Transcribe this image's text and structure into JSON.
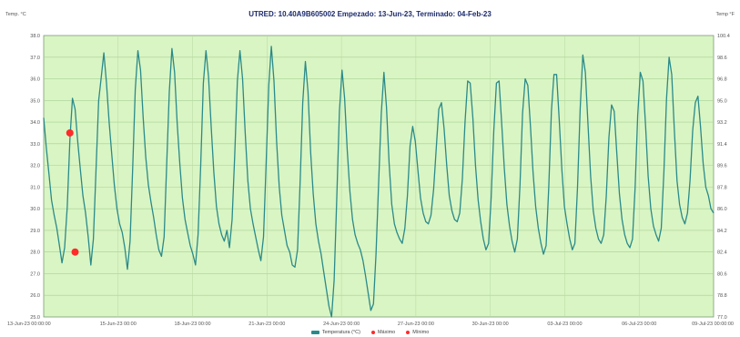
{
  "chart_data": {
    "type": "line",
    "title": "UTRED: 10.40A9B605002 Empezado: 13-Jun-23, Terminado: 04-Feb-23",
    "left_unit": "Temp. °C",
    "right_unit": "Temp °F",
    "y_ticks_left": [
      "38.0",
      "37.0",
      "36.0",
      "35.0",
      "34.0",
      "33.0",
      "32.0",
      "31.0",
      "30.0",
      "29.0",
      "28.0",
      "27.0",
      "26.0",
      "25.0"
    ],
    "y_ticks_right": [
      "100.4",
      "98.6",
      "96.8",
      "95.0",
      "93.2",
      "91.4",
      "89.6",
      "87.8",
      "86.0",
      "84.2",
      "82.4",
      "80.6",
      "78.8",
      "77.0"
    ],
    "ylim": [
      25,
      38
    ],
    "x_ticks": [
      "13-Jun-23 00:00:00",
      "15-Jun-23 00:00",
      "18-Jun-23 00:00",
      "21-Jun-23 00:00",
      "24-Jun-23 00:00",
      "27-Jun-23 00:00",
      "30-Jun-23 00:00",
      "03-Jul-23 00:00",
      "06-Jul-23 00:00",
      "09-Jul-23 00:00:00"
    ],
    "grid": true,
    "legend_position": "bottom",
    "plot_background": "#d9f5c3",
    "series": [
      {
        "name": "Temperatura (°C)",
        "color": "#2a8a8a",
        "values": [
          34.2,
          32.8,
          31.6,
          30.4,
          29.7,
          29.1,
          28.3,
          27.5,
          28.2,
          30.1,
          33.2,
          35.1,
          34.6,
          33.1,
          31.8,
          30.6,
          29.8,
          28.7,
          27.4,
          28.6,
          31.8,
          35.0,
          36.1,
          37.2,
          35.8,
          34.0,
          32.5,
          31.1,
          30.0,
          29.3,
          28.9,
          28.2,
          27.2,
          28.5,
          31.9,
          35.5,
          37.3,
          36.4,
          34.2,
          32.4,
          31.1,
          30.3,
          29.6,
          28.8,
          28.1,
          27.8,
          28.7,
          32.0,
          35.4,
          37.4,
          36.3,
          34.0,
          32.1,
          30.5,
          29.5,
          28.9,
          28.3,
          27.9,
          27.4,
          28.8,
          32.0,
          35.8,
          37.3,
          36.1,
          33.8,
          31.7,
          30.1,
          29.3,
          28.8,
          28.5,
          29.0,
          28.2,
          29.5,
          32.5,
          35.9,
          37.3,
          36.0,
          33.5,
          31.3,
          30.0,
          29.3,
          28.7,
          28.1,
          27.6,
          28.7,
          32.1,
          35.7,
          37.5,
          35.9,
          33.1,
          31.0,
          29.7,
          29.0,
          28.3,
          28.0,
          27.4,
          27.3,
          28.1,
          31.3,
          34.9,
          36.8,
          35.4,
          32.6,
          30.7,
          29.3,
          28.5,
          27.9,
          27.1,
          26.3,
          25.5,
          25.0,
          26.7,
          30.5,
          34.5,
          36.4,
          35.1,
          32.7,
          30.8,
          29.5,
          28.8,
          28.4,
          28.1,
          27.6,
          26.9,
          26.1,
          25.3,
          25.6,
          27.9,
          31.2,
          34.4,
          36.3,
          34.7,
          32.1,
          30.2,
          29.3,
          28.9,
          28.6,
          28.4,
          29.1,
          30.6,
          32.9,
          33.8,
          33.1,
          31.8,
          30.5,
          29.8,
          29.4,
          29.3,
          29.7,
          30.9,
          32.8,
          34.6,
          34.9,
          33.7,
          32.0,
          30.6,
          29.9,
          29.5,
          29.4,
          29.8,
          31.4,
          34.0,
          35.9,
          35.8,
          34.2,
          32.0,
          30.4,
          29.4,
          28.6,
          28.1,
          28.4,
          30.5,
          33.6,
          35.8,
          35.9,
          34.0,
          31.9,
          30.2,
          29.2,
          28.5,
          28.0,
          28.6,
          31.1,
          34.4,
          36.0,
          35.7,
          33.8,
          31.7,
          30.1,
          29.1,
          28.4,
          27.9,
          28.3,
          31.0,
          34.5,
          36.2,
          36.2,
          34.1,
          31.8,
          30.1,
          29.3,
          28.6,
          28.1,
          28.4,
          31.0,
          34.6,
          37.1,
          36.3,
          33.9,
          31.5,
          29.9,
          29.1,
          28.6,
          28.4,
          28.8,
          30.6,
          33.3,
          34.8,
          34.5,
          32.6,
          30.7,
          29.5,
          28.8,
          28.4,
          28.2,
          28.6,
          31.0,
          34.3,
          36.3,
          35.9,
          33.8,
          31.5,
          30.0,
          29.2,
          28.8,
          28.5,
          29.1,
          31.7,
          35.1,
          37.0,
          36.2,
          33.6,
          31.3,
          30.2,
          29.6,
          29.3,
          29.8,
          31.3,
          33.6,
          34.9,
          35.2,
          33.8,
          32.1,
          31.0,
          30.6,
          30.0,
          29.8
        ]
      },
      {
        "name": "Máximo",
        "color": "#ff2a2a",
        "marker_only": true,
        "points": [
          {
            "x_index": 10,
            "y": 33.5
          }
        ]
      },
      {
        "name": "Mínimo",
        "color": "#ff2a2a",
        "marker_only": true,
        "points": [
          {
            "x_index": 12,
            "y": 28.0
          }
        ]
      }
    ]
  }
}
